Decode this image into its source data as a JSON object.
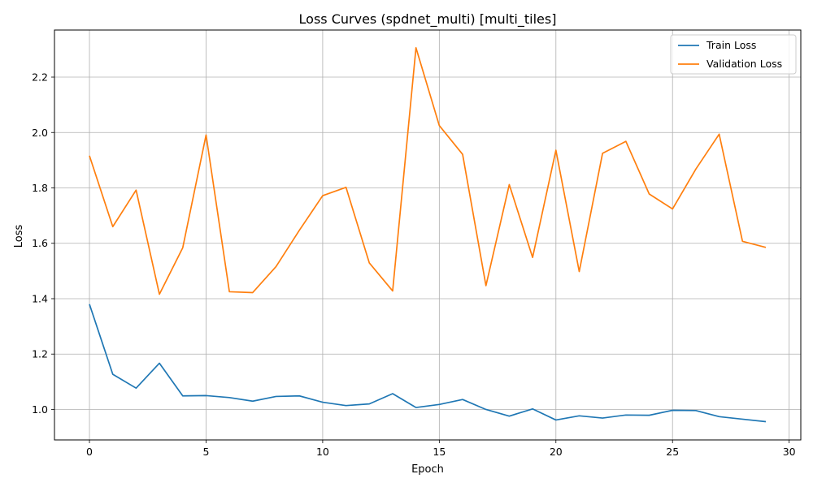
{
  "chart_data": {
    "type": "line",
    "title": "Loss Curves (spdnet_multi) [multi_tiles]",
    "xlabel": "Epoch",
    "ylabel": "Loss",
    "xlim": [
      -1.5,
      30.5
    ],
    "ylim": [
      0.89,
      2.37
    ],
    "xticks": [
      0,
      5,
      10,
      15,
      20,
      25,
      30
    ],
    "yticks": [
      1.0,
      1.2,
      1.4,
      1.6,
      1.8,
      2.0,
      2.2
    ],
    "ytick_labels": [
      "1.0",
      "1.2",
      "1.4",
      "1.6",
      "1.8",
      "2.0",
      "2.2"
    ],
    "grid": true,
    "legend_position": "top-right",
    "x": [
      0,
      1,
      2,
      3,
      4,
      5,
      6,
      7,
      8,
      9,
      10,
      11,
      12,
      13,
      14,
      15,
      16,
      17,
      18,
      19,
      20,
      21,
      22,
      23,
      24,
      25,
      26,
      27,
      28,
      29
    ],
    "series": [
      {
        "name": "Train Loss",
        "color": "#1f77b4",
        "values": [
          1.38,
          1.127,
          1.077,
          1.167,
          1.049,
          1.05,
          1.043,
          1.03,
          1.047,
          1.049,
          1.026,
          1.014,
          1.02,
          1.057,
          1.007,
          1.018,
          1.036,
          1.0,
          0.976,
          1.002,
          0.962,
          0.977,
          0.969,
          0.98,
          0.979,
          0.997,
          0.996,
          0.974,
          0.965,
          0.956
        ]
      },
      {
        "name": "Validation Loss",
        "color": "#ff7f0e",
        "values": [
          1.916,
          1.66,
          1.792,
          1.416,
          1.584,
          1.991,
          1.425,
          1.422,
          1.516,
          1.647,
          1.772,
          1.802,
          1.529,
          1.428,
          2.306,
          2.025,
          1.921,
          1.447,
          1.812,
          1.549,
          1.936,
          1.498,
          1.925,
          1.968,
          1.778,
          1.724,
          1.868,
          1.994,
          1.607,
          1.585
        ]
      }
    ]
  }
}
